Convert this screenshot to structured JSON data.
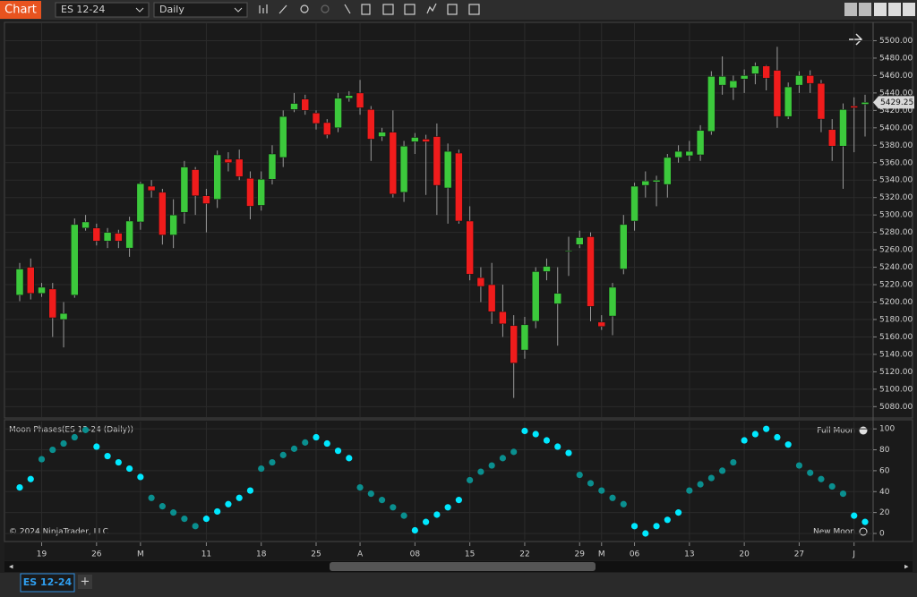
{
  "toolbar": {
    "chart_label": "Chart",
    "instrument": "ES 12-24",
    "interval": "Daily"
  },
  "tab": {
    "label": "ES 12-24",
    "add": "+"
  },
  "chart_data": [
    {
      "type": "candlestick",
      "categories": [
        null,
        null,
        "19",
        null,
        null,
        null,
        null,
        "26",
        null,
        null,
        null,
        "M",
        null,
        null,
        null,
        null,
        null,
        "11",
        null,
        null,
        null,
        null,
        "18",
        null,
        null,
        null,
        null,
        "25",
        null,
        null,
        null,
        "A",
        null,
        null,
        null,
        null,
        "08",
        null,
        null,
        null,
        null,
        "15",
        null,
        null,
        null,
        null,
        "22",
        null,
        null,
        null,
        null,
        "29",
        null,
        "M",
        null,
        null,
        "06",
        null,
        null,
        null,
        null,
        "13",
        null,
        null,
        null,
        null,
        "20",
        null,
        null,
        null,
        null,
        "27",
        null,
        null,
        null,
        null,
        "J",
        null
      ],
      "open": [
        5208,
        5240,
        5210,
        5215,
        5180,
        5208,
        5285,
        5285,
        5270,
        5279,
        5262,
        5292,
        5333,
        5326,
        5277,
        5303,
        5352,
        5322,
        5318,
        5364,
        5364,
        5342,
        5311,
        5341,
        5366,
        5421,
        5433,
        5417,
        5406,
        5400,
        5434,
        5440,
        5421,
        5390,
        5395,
        5326,
        5384,
        5387,
        5390,
        5331,
        5371,
        5293,
        5228,
        5220,
        5189,
        5173,
        5145,
        5178,
        5235,
        5198,
        5258,
        5266,
        5275,
        5177,
        5184,
        5238,
        5293,
        5334,
        5338,
        5335,
        5366,
        5368,
        5369,
        5396,
        5449,
        5446,
        5456,
        5462,
        5471,
        5466,
        5413,
        5449,
        5460,
        5451,
        5398,
        5379,
        5425,
        5427
      ],
      "high": [
        5245,
        5250,
        5222,
        5222,
        5200,
        5296,
        5300,
        5290,
        5285,
        5283,
        5298,
        5338,
        5340,
        5330,
        5318,
        5362,
        5355,
        5330,
        5374,
        5372,
        5375,
        5350,
        5350,
        5380,
        5420,
        5440,
        5438,
        5420,
        5410,
        5440,
        5442,
        5455,
        5425,
        5400,
        5420,
        5385,
        5394,
        5392,
        5405,
        5382,
        5375,
        5310,
        5240,
        5245,
        5220,
        5185,
        5183,
        5240,
        5250,
        5240,
        5275,
        5282,
        5280,
        5185,
        5222,
        5300,
        5337,
        5350,
        5345,
        5370,
        5380,
        5385,
        5403,
        5465,
        5482,
        5460,
        5467,
        5475,
        5472,
        5493,
        5452,
        5465,
        5466,
        5455,
        5410,
        5428,
        5435,
        5438
      ],
      "low": [
        5201,
        5203,
        5206,
        5160,
        5148,
        5205,
        5282,
        5265,
        5262,
        5262,
        5252,
        5283,
        5320,
        5266,
        5262,
        5290,
        5300,
        5280,
        5308,
        5350,
        5340,
        5295,
        5305,
        5335,
        5355,
        5418,
        5415,
        5398,
        5388,
        5395,
        5430,
        5415,
        5362,
        5385,
        5320,
        5315,
        5370,
        5323,
        5300,
        5290,
        5290,
        5225,
        5200,
        5175,
        5160,
        5090,
        5135,
        5170,
        5225,
        5150,
        5230,
        5262,
        5178,
        5168,
        5162,
        5232,
        5282,
        5320,
        5310,
        5320,
        5360,
        5362,
        5362,
        5392,
        5438,
        5432,
        5440,
        5450,
        5443,
        5400,
        5410,
        5440,
        5440,
        5395,
        5362,
        5330,
        5372,
        5390
      ],
      "close": [
        5238,
        5210,
        5217,
        5182,
        5187,
        5289,
        5292,
        5270,
        5280,
        5270,
        5293,
        5336,
        5328,
        5277,
        5300,
        5355,
        5322,
        5313,
        5369,
        5360,
        5344,
        5310,
        5341,
        5370,
        5413,
        5428,
        5420,
        5405,
        5392,
        5434,
        5437,
        5423,
        5387,
        5395,
        5324,
        5379,
        5389,
        5384,
        5334,
        5373,
        5293,
        5232,
        5218,
        5189,
        5175,
        5130,
        5174,
        5235,
        5241,
        5210,
        5259,
        5274,
        5195,
        5172,
        5217,
        5289,
        5333,
        5339,
        5340,
        5366,
        5373,
        5373,
        5397,
        5459,
        5459,
        5454,
        5460,
        5471,
        5457,
        5413,
        5447,
        5460,
        5451,
        5410,
        5379,
        5421,
        5423,
        5429.25
      ],
      "up_color": "#3cc93c",
      "down_color": "#f01c1c",
      "ylim": [
        5068,
        5520
      ],
      "yticks": [
        {
          "value": 5080,
          "label": "5080.00"
        },
        {
          "value": 5100,
          "label": "5100.00"
        },
        {
          "value": 5120,
          "label": "5120.00"
        },
        {
          "value": 5140,
          "label": "5140.00"
        },
        {
          "value": 5160,
          "label": "5160.00"
        },
        {
          "value": 5180,
          "label": "5180.00"
        },
        {
          "value": 5200,
          "label": "5200.00"
        },
        {
          "value": 5220,
          "label": "5220.00"
        },
        {
          "value": 5240,
          "label": "5240.00"
        },
        {
          "value": 5260,
          "label": "5260.00"
        },
        {
          "value": 5280,
          "label": "5280.00"
        },
        {
          "value": 5300,
          "label": "5300.00"
        },
        {
          "value": 5320,
          "label": "5320.00"
        },
        {
          "value": 5340,
          "label": "5340.00"
        },
        {
          "value": 5360,
          "label": "5360.00"
        },
        {
          "value": 5380,
          "label": "5380.00"
        },
        {
          "value": 5400,
          "label": "5400.00"
        },
        {
          "value": 5420,
          "label": "5420.00"
        },
        {
          "value": 5440,
          "label": "5440.00"
        },
        {
          "value": 5460,
          "label": "5460.00"
        },
        {
          "value": 5480,
          "label": "5480.00"
        },
        {
          "value": 5500,
          "label": "5500.00"
        }
      ],
      "grid": true
    },
    {
      "type": "scatter",
      "title": "Moon Phases(ES 12-24 (Daily))",
      "annotations": [
        "Full Moon",
        "New Moon"
      ],
      "copyright": "© 2024 NinjaTrader, LLC",
      "values": [
        44,
        52,
        71,
        80,
        86,
        92,
        99,
        83,
        74,
        68,
        62,
        54,
        34,
        26,
        20,
        14,
        7,
        14,
        21,
        28,
        34,
        41,
        62,
        68,
        75,
        81,
        87,
        92,
        86,
        79,
        72,
        44,
        38,
        32,
        25,
        17,
        3,
        11,
        18,
        25,
        32,
        51,
        59,
        65,
        72,
        78,
        98,
        95,
        89,
        83,
        77,
        56,
        48,
        41,
        34,
        28,
        7,
        0,
        7,
        13,
        20,
        41,
        47,
        53,
        60,
        68,
        89,
        95,
        100,
        92,
        85,
        65,
        58,
        52,
        45,
        38,
        17,
        11
      ],
      "point_colors": [
        "#00e8ff",
        "#00e8ff",
        "#0a8f8f",
        "#0a8f8f",
        "#0a8f8f",
        "#0a8f8f",
        "#0a8f8f",
        "#00e8ff",
        "#00e8ff",
        "#00e8ff",
        "#00e8ff",
        "#00e8ff",
        "#0a8f8f",
        "#0a8f8f",
        "#0a8f8f",
        "#0a8f8f",
        "#0a8f8f",
        "#00e8ff",
        "#00e8ff",
        "#00e8ff",
        "#00e8ff",
        "#00e8ff",
        "#0a8f8f",
        "#0a8f8f",
        "#0a8f8f",
        "#0a8f8f",
        "#0a8f8f",
        "#00e8ff",
        "#00e8ff",
        "#00e8ff",
        "#00e8ff",
        "#0a8f8f",
        "#0a8f8f",
        "#0a8f8f",
        "#0a8f8f",
        "#0a8f8f",
        "#00e8ff",
        "#00e8ff",
        "#00e8ff",
        "#00e8ff",
        "#00e8ff",
        "#0a8f8f",
        "#0a8f8f",
        "#0a8f8f",
        "#0a8f8f",
        "#0a8f8f",
        "#00e8ff",
        "#00e8ff",
        "#00e8ff",
        "#00e8ff",
        "#00e8ff",
        "#0a8f8f",
        "#0a8f8f",
        "#0a8f8f",
        "#0a8f8f",
        "#0a8f8f",
        "#00e8ff",
        "#00e8ff",
        "#00e8ff",
        "#00e8ff",
        "#00e8ff",
        "#0a8f8f",
        "#0a8f8f",
        "#0a8f8f",
        "#0a8f8f",
        "#0a8f8f",
        "#00e8ff",
        "#00e8ff",
        "#00e8ff",
        "#00e8ff",
        "#00e8ff",
        "#0a8f8f",
        "#0a8f8f",
        "#0a8f8f",
        "#0a8f8f",
        "#0a8f8f",
        "#00e8ff",
        "#00e8ff"
      ],
      "ylim": [
        -6,
        107
      ],
      "yticks": [
        0,
        20,
        40,
        60,
        80,
        100
      ],
      "grid": true
    }
  ]
}
